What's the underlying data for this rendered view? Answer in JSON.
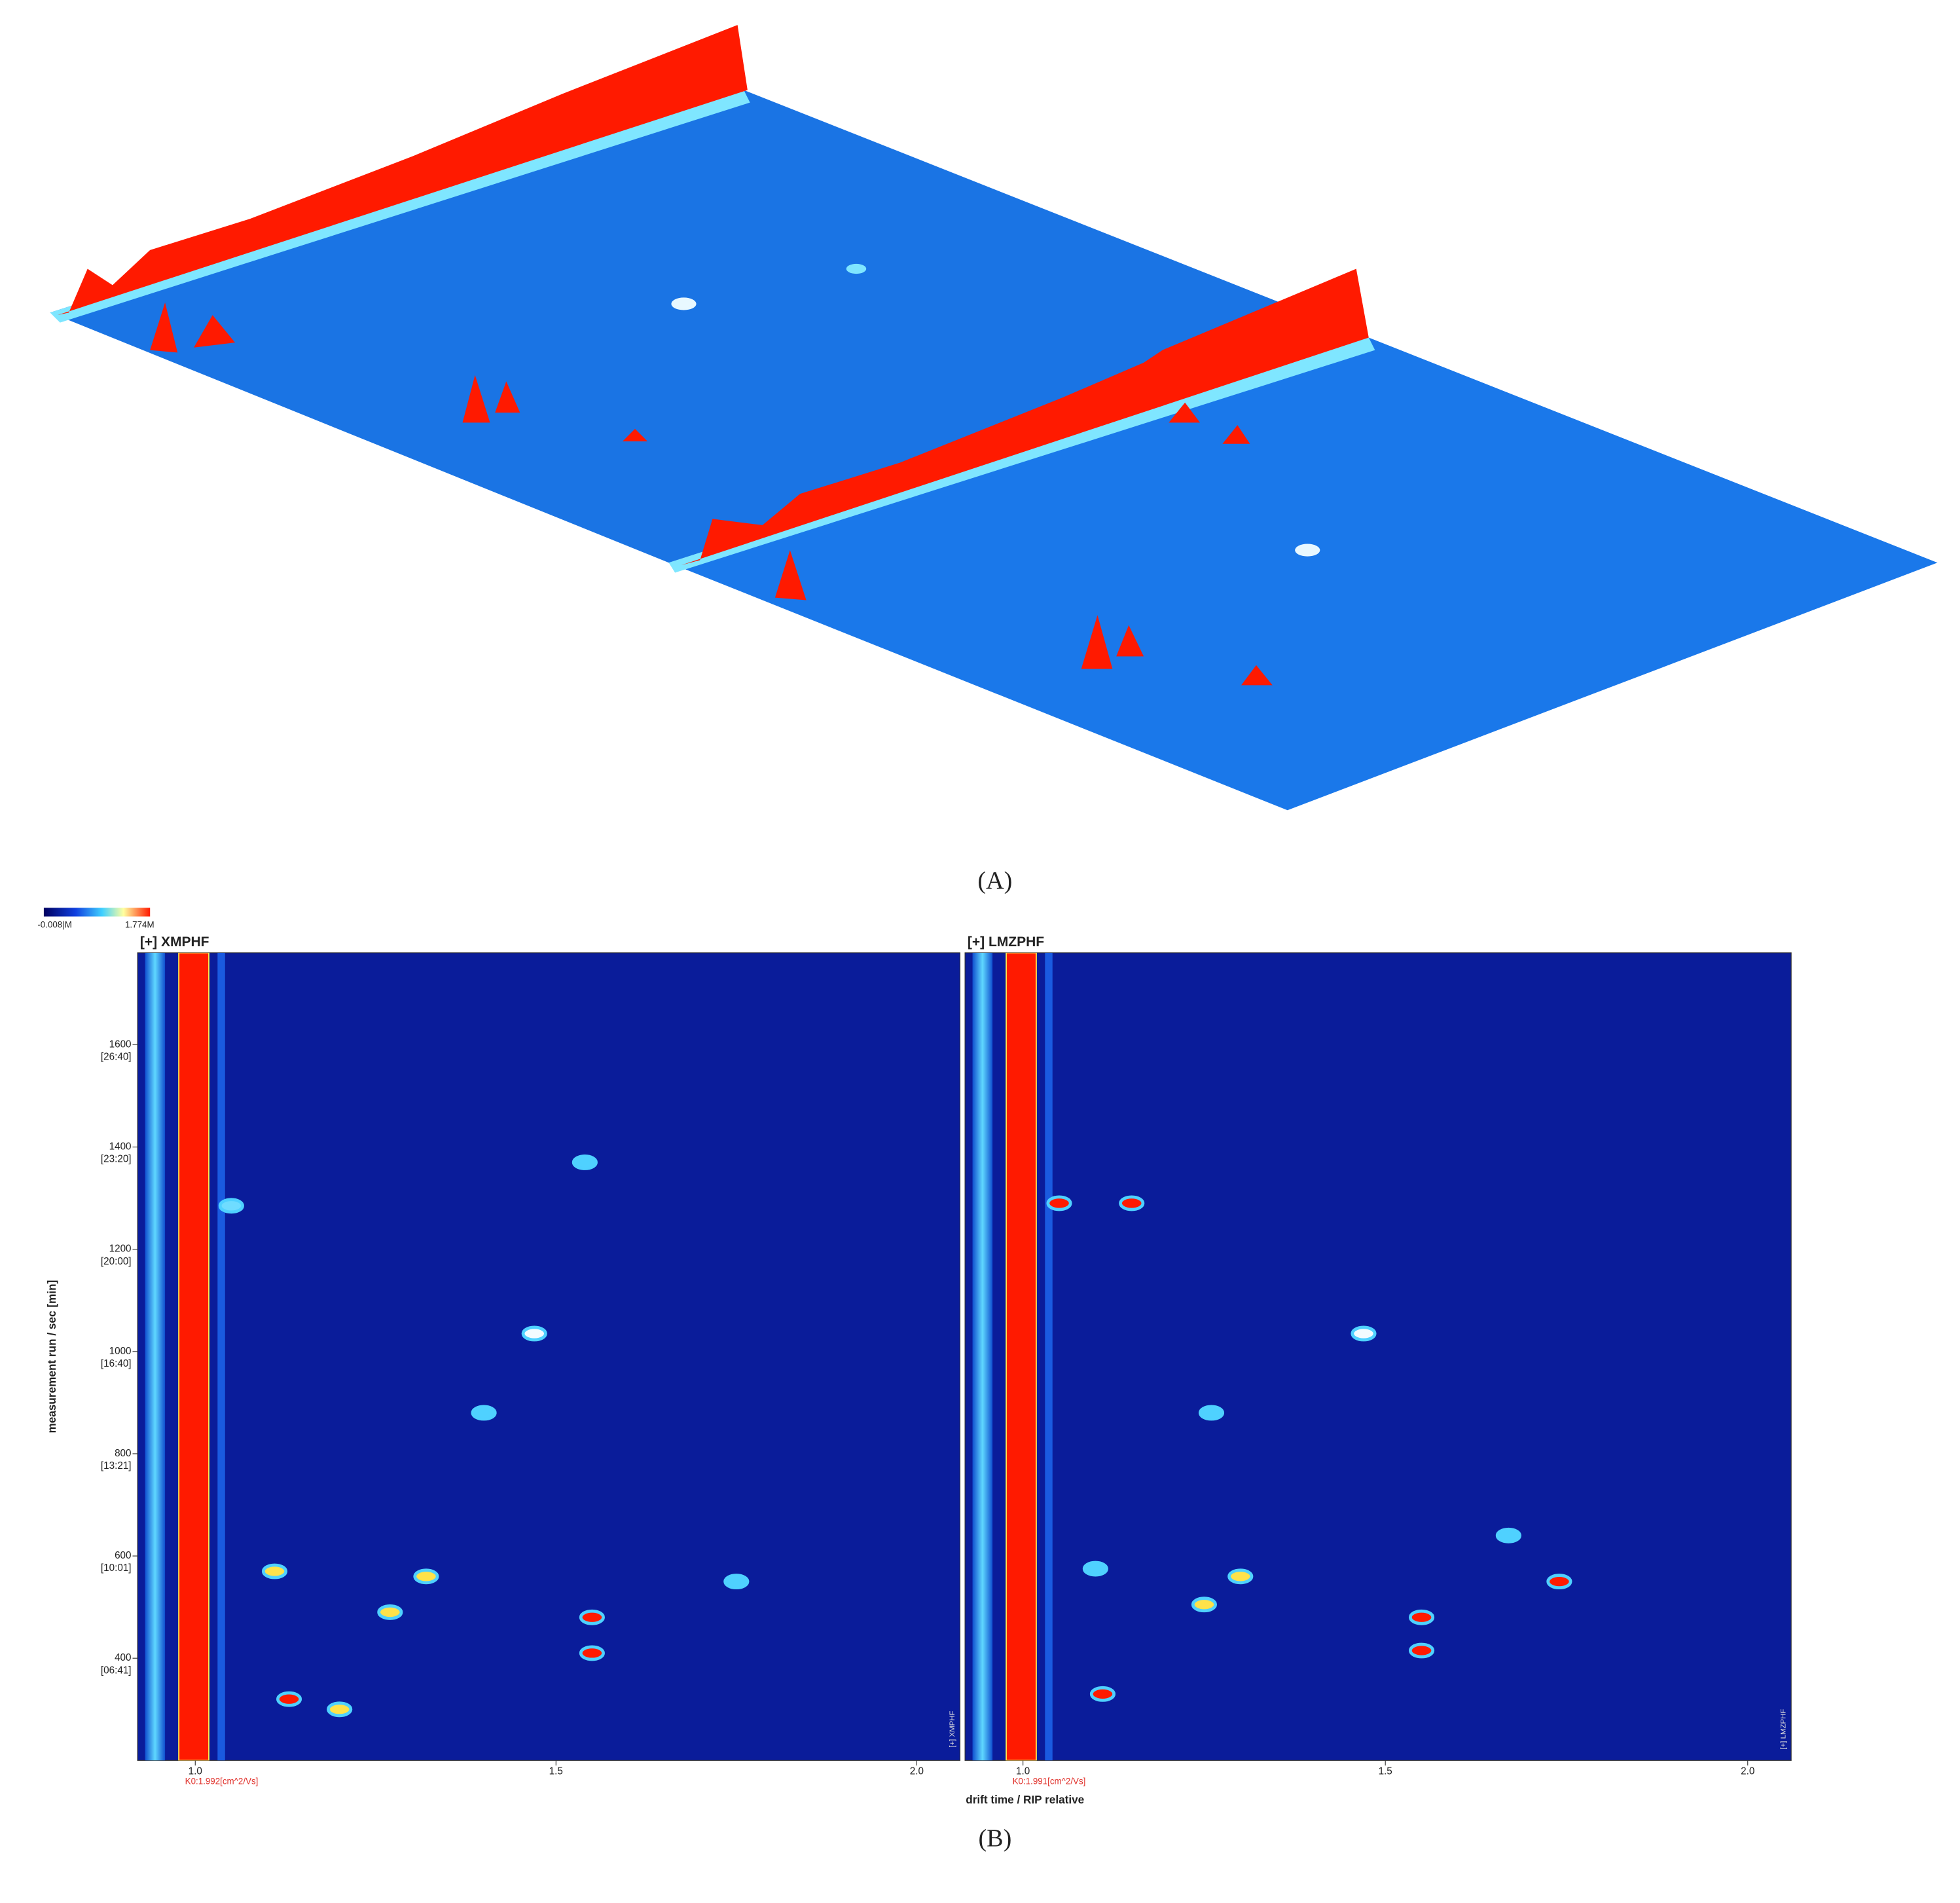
{
  "figure": {
    "panel_a_label": "(A)",
    "panel_b_label": "(B)",
    "colorbar": {
      "min_label": "-0.008|M",
      "max_label": "1.774M"
    },
    "x_label": "drift time / RIP relative",
    "y_label": "measurement run / sec [min]"
  },
  "chart_data": [
    {
      "type": "heatmap",
      "title": "[+] XMPHF",
      "side_label": "[+] XMPHF",
      "k0_label": "K0:1.992[cm^2/Vs]",
      "xlim": [
        0.92,
        2.06
      ],
      "xticks": [
        {
          "value": 1,
          "label": "1.0"
        },
        1.5,
        {
          "value": 2,
          "label": "2.0"
        }
      ],
      "ylim": [
        200,
        1780
      ],
      "yticks": [
        {
          "value": 400,
          "label": "400",
          "time": "[06:41]"
        },
        {
          "value": 600,
          "label": "600",
          "time": "[10:01]"
        },
        {
          "value": 800,
          "label": "800",
          "time": "[13:21]"
        },
        {
          "value": 1000,
          "label": "1000",
          "time": "[16:40]"
        },
        {
          "value": 1200,
          "label": "1200",
          "time": "[20:00]"
        },
        {
          "value": 1400,
          "label": "1400",
          "time": "[23:20]"
        },
        {
          "value": 1600,
          "label": "1600",
          "time": "[26:40]"
        }
      ],
      "x": [
        1.05,
        1.47,
        1.55,
        1.55,
        1.32,
        1.11,
        1.75,
        1.27,
        1.54,
        1.13,
        1.2,
        1.4
      ],
      "y": [
        1285,
        1035,
        410,
        480,
        560,
        570,
        550,
        490,
        1370,
        320,
        300,
        880
      ],
      "colors": [
        "#6fdcff",
        "#f4fbff",
        "#ff1a00",
        "#ff1a00",
        "#ffe24a",
        "#ffe24a",
        "#4fd1ff",
        "#ffe24a",
        "#4fd1ff",
        "#ff1a00",
        "#ffe24a",
        "#4fd1ff"
      ]
    },
    {
      "type": "heatmap",
      "title": "[+] LMZPHF",
      "side_label": "[+] LMZPHF",
      "k0_label": "K0:1.991[cm^2/Vs]",
      "xlim": [
        0.92,
        2.06
      ],
      "xticks": [
        {
          "value": 1,
          "label": "1.0"
        },
        1.5,
        {
          "value": 2,
          "label": "2.0"
        }
      ],
      "ylim": [
        200,
        1780
      ],
      "x": [
        1.05,
        1.15,
        1.47,
        1.55,
        1.55,
        1.74,
        1.3,
        1.25,
        1.11,
        1.1,
        1.26,
        1.67
      ],
      "y": [
        1290,
        1290,
        1035,
        415,
        480,
        550,
        560,
        505,
        330,
        575,
        880,
        640
      ],
      "colors": [
        "#ff1a00",
        "#ff1a00",
        "#f4fbff",
        "#ff1a00",
        "#ff1a00",
        "#ff1a00",
        "#ffe24a",
        "#ffe24a",
        "#ff1a00",
        "#4fd1ff",
        "#4fd1ff",
        "#4fd1ff"
      ]
    }
  ]
}
